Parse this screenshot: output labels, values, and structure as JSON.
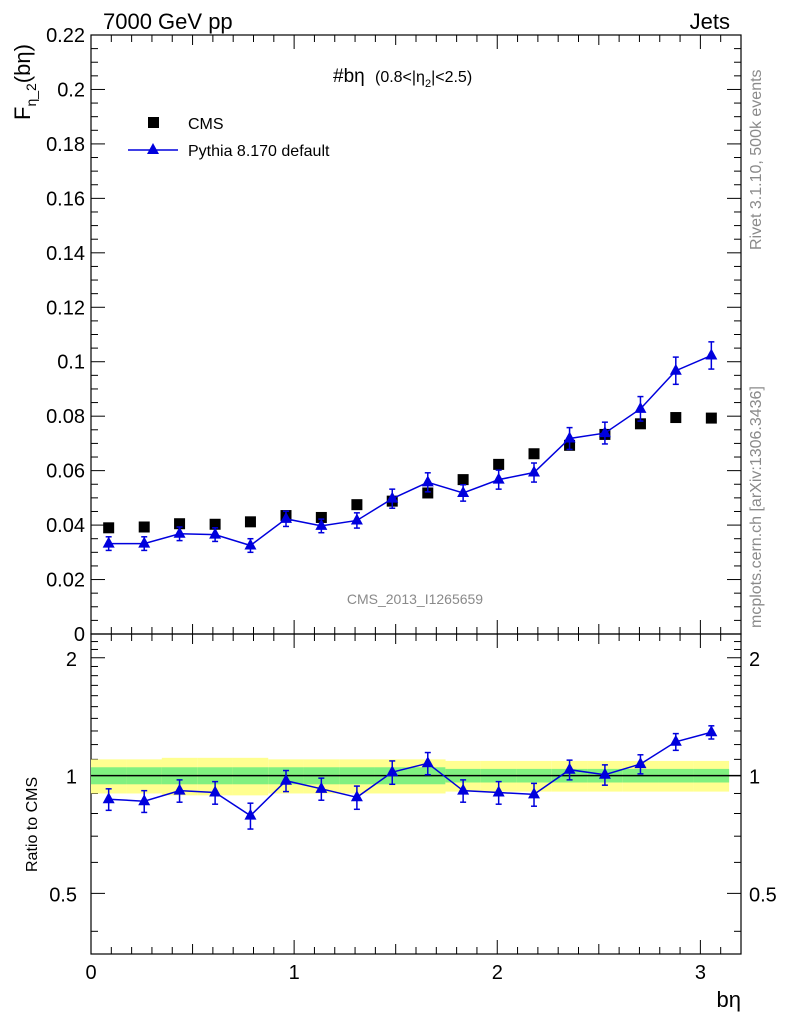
{
  "header": {
    "left": "7000 GeV pp",
    "right": "Jets"
  },
  "side": {
    "rivet": "Rivet 3.1.10,  500k events",
    "mcplots": "mcplots.cern.ch [arXiv:1306.3436]"
  },
  "watermark": "CMS_2013_I1265659",
  "plot_title": {
    "main": "#bη",
    "cut_prefix": "(0.8<|η",
    "cut_sub": "2",
    "cut_suffix": "|<2.5)"
  },
  "ylabel_top": {
    "main": "F",
    "sub": "η_2",
    "arg": "(bη)"
  },
  "ylabel_bottom": "Ratio to CMS",
  "xlabel": "bη",
  "legend": {
    "data": "CMS",
    "mc": "Pythia 8.170 default"
  },
  "colors": {
    "mc": "#0000dd",
    "data": "#000000",
    "band_inner": "#80f080",
    "band_outer": "#ffff90"
  },
  "chart_data": [
    {
      "type": "scatter",
      "panel": "main",
      "xlim": [
        0,
        3.2
      ],
      "ylim": [
        0,
        0.22
      ],
      "xticks": [
        0,
        1,
        2,
        3
      ],
      "yticks": [
        {
          "v": 0,
          "label": "0"
        },
        {
          "v": 0.02,
          "label": "0.02"
        },
        {
          "v": 0.04,
          "label": "0.04"
        },
        {
          "v": 0.06,
          "label": "0.06"
        },
        {
          "v": 0.08,
          "label": "0.08"
        },
        {
          "v": 0.1,
          "label": "0.1"
        },
        {
          "v": 0.12,
          "label": "0.12"
        },
        {
          "v": 0.14,
          "label": "0.14"
        },
        {
          "v": 0.16,
          "label": "0.16"
        },
        {
          "v": 0.18,
          "label": "0.18"
        },
        {
          "v": 0.2,
          "label": "0.2"
        },
        {
          "v": 0.22,
          "label": "0.22"
        }
      ],
      "x": [
        0.087,
        0.262,
        0.436,
        0.611,
        0.785,
        0.96,
        1.134,
        1.309,
        1.483,
        1.658,
        1.832,
        2.007,
        2.181,
        2.356,
        2.53,
        2.705,
        2.879,
        3.054
      ],
      "series": [
        {
          "name": "CMS",
          "marker": "square",
          "values": [
            0.039,
            0.0393,
            0.0405,
            0.0403,
            0.0412,
            0.0435,
            0.0428,
            0.0475,
            0.0488,
            0.0518,
            0.0567,
            0.0623,
            0.0662,
            0.0693,
            0.0733,
            0.0772,
            0.0795,
            0.0793
          ]
        },
        {
          "name": "Pythia 8.170 default",
          "marker": "triangle",
          "values": [
            0.0332,
            0.0332,
            0.0368,
            0.0365,
            0.0325,
            0.0423,
            0.0397,
            0.0417,
            0.0497,
            0.0557,
            0.0518,
            0.0567,
            0.0593,
            0.0718,
            0.0738,
            0.0827,
            0.0967,
            0.1023
          ],
          "errors": [
            0.0025,
            0.0025,
            0.0025,
            0.0025,
            0.0025,
            0.0028,
            0.0025,
            0.0028,
            0.0035,
            0.0035,
            0.003,
            0.0035,
            0.0035,
            0.004,
            0.004,
            0.0045,
            0.005,
            0.005
          ]
        }
      ]
    },
    {
      "type": "line",
      "panel": "ratio",
      "ylabel": "Ratio to CMS",
      "xlim": [
        0,
        3.2
      ],
      "ylim": [
        0.35,
        2.3
      ],
      "yscale": "log",
      "xticks": [
        0,
        1,
        2,
        3
      ],
      "yticks": [
        {
          "v": 0.5,
          "label": "0.5"
        },
        {
          "v": 1,
          "label": "1"
        },
        {
          "v": 2,
          "label": "2"
        }
      ],
      "x": [
        0.087,
        0.262,
        0.436,
        0.611,
        0.785,
        0.96,
        1.134,
        1.309,
        1.483,
        1.658,
        1.832,
        2.007,
        2.181,
        2.356,
        2.53,
        2.705,
        2.879,
        3.054
      ],
      "series": [
        {
          "name": "Pythia 8.170 default",
          "values": [
            0.87,
            0.86,
            0.915,
            0.905,
            0.79,
            0.97,
            0.925,
            0.88,
            1.02,
            1.075,
            0.915,
            0.905,
            0.895,
            1.035,
            1.005,
            1.07,
            1.22,
            1.29
          ],
          "errors": [
            0.055,
            0.055,
            0.06,
            0.06,
            0.06,
            0.06,
            0.06,
            0.06,
            0.07,
            0.07,
            0.06,
            0.06,
            0.06,
            0.06,
            0.06,
            0.06,
            0.06,
            0.05
          ]
        }
      ],
      "band_inner": [
        0.05,
        0.05,
        0.05,
        0.05,
        0.05,
        0.05,
        0.05,
        0.05,
        0.05,
        0.05,
        0.04,
        0.04,
        0.04,
        0.04,
        0.04,
        0.04,
        0.04,
        0.04
      ],
      "band_outer": [
        0.1,
        0.1,
        0.11,
        0.11,
        0.11,
        0.1,
        0.1,
        0.1,
        0.1,
        0.1,
        0.09,
        0.09,
        0.09,
        0.09,
        0.09,
        0.09,
        0.09,
        0.09
      ]
    }
  ]
}
